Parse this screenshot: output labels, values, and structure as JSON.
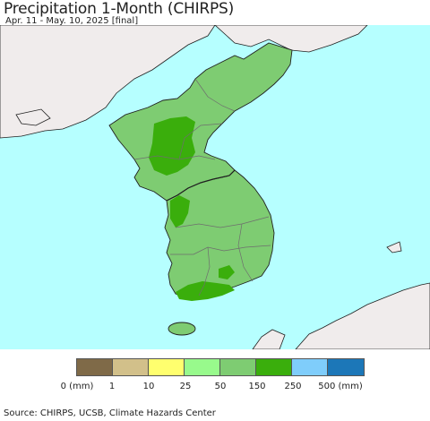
{
  "title": "Precipitation 1-Month (CHIRPS)",
  "subtitle": "Apr. 11 - May. 10, 2025 [final]",
  "map": {
    "colors": {
      "sea": "#b6ffff",
      "foreign_land": "#f0ecec",
      "region_base": "#7ecc72",
      "region_150_250": "#3aae0c",
      "border": "#6e6e6e",
      "coast": "#202020"
    }
  },
  "legend": {
    "bins": [
      {
        "color": "#7f6a48"
      },
      {
        "color": "#d2c08a"
      },
      {
        "color": "#ffff6e"
      },
      {
        "color": "#98fa8c"
      },
      {
        "color": "#7ecc72"
      },
      {
        "color": "#3aae0c"
      },
      {
        "color": "#7fcdfb"
      },
      {
        "color": "#1c77b8"
      }
    ],
    "labels": [
      "0 (mm)",
      "1",
      "10",
      "25",
      "50",
      "150",
      "250",
      "500 (mm)"
    ]
  },
  "source": "Source: CHIRPS, UCSB, Climate Hazards Center"
}
